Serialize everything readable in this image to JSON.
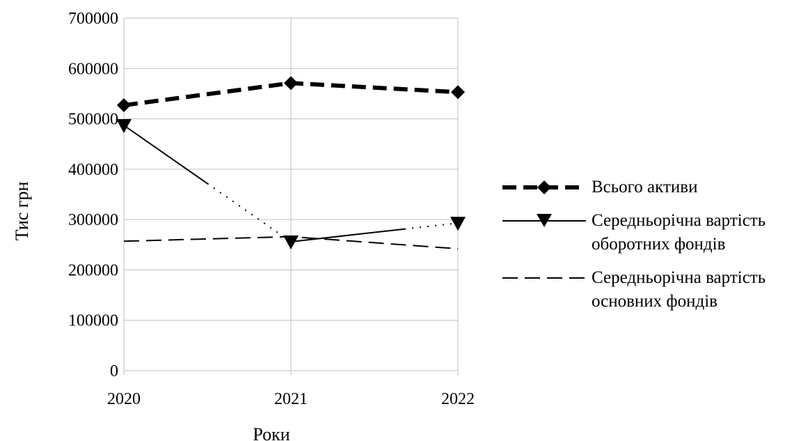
{
  "chart_data": {
    "type": "line",
    "categories": [
      "2020",
      "2021",
      "2022"
    ],
    "series": [
      {
        "name": "Всього активи",
        "values": [
          527000,
          571000,
          553000
        ],
        "marker": "diamond",
        "line": "heavy-dash"
      },
      {
        "name": "Середньорічна  вартість\nоборотних фондів",
        "values": [
          487000,
          256000,
          293000
        ],
        "marker": "triangle-down",
        "line": "solid-dotted"
      },
      {
        "name": "Середньорічна вартість\nосновних  фондів",
        "values": [
          257000,
          266000,
          242000
        ],
        "marker": "none",
        "line": "long-dash"
      }
    ],
    "xlabel": "Роки",
    "ylabel": "Тис грн",
    "ylim": [
      0,
      700000
    ],
    "yticks": [
      "0",
      "100000",
      "200000",
      "300000",
      "400000",
      "500000",
      "600000",
      "700000"
    ],
    "grid": true,
    "legend": "right",
    "colors": {
      "line": "#000000",
      "grid": "#bfbfbf"
    }
  }
}
